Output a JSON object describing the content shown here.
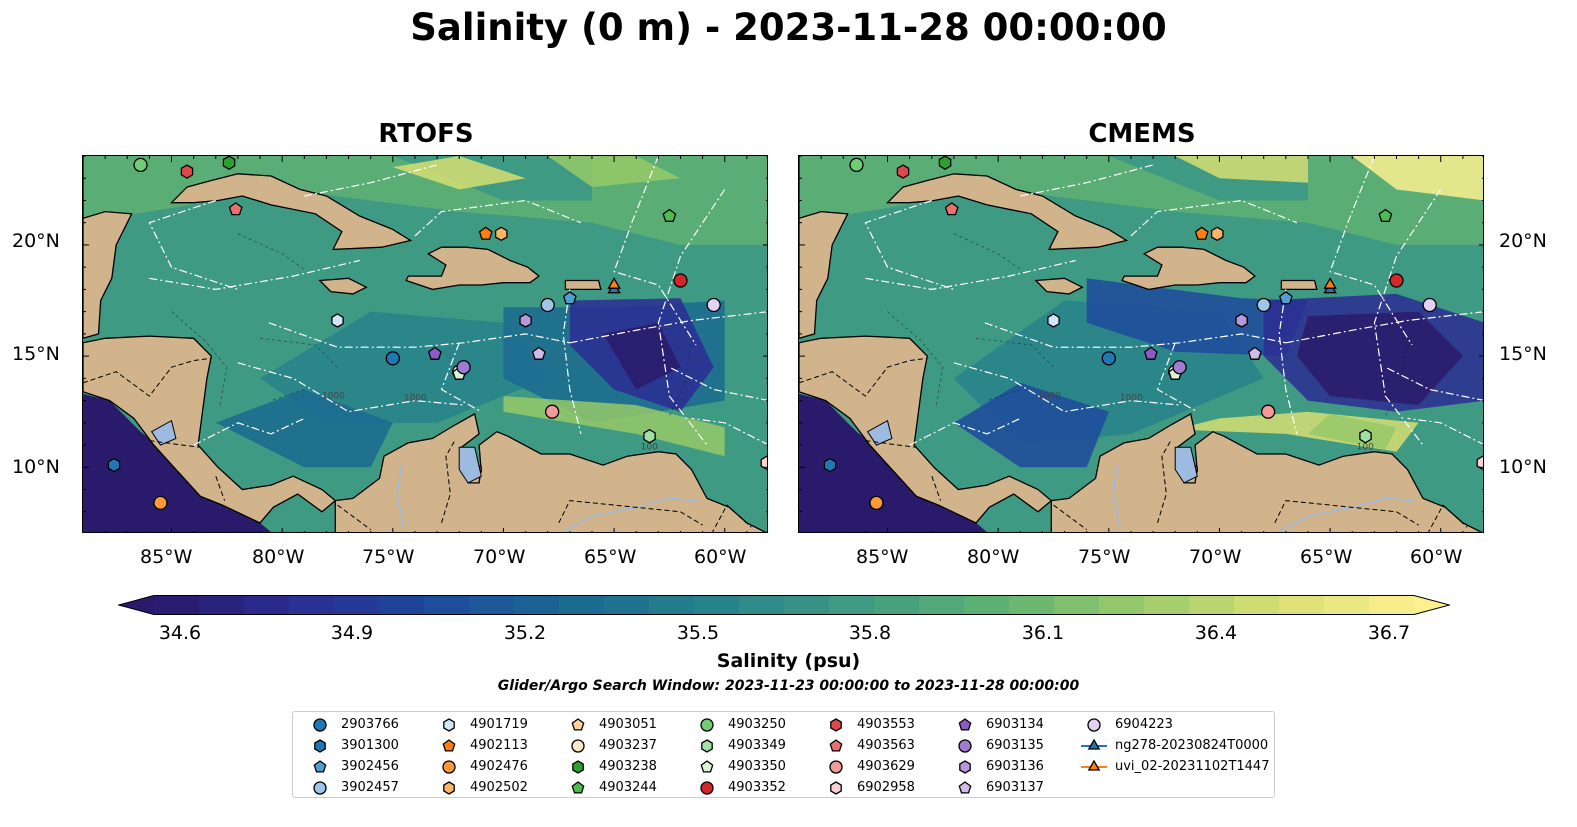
{
  "title": "Salinity (0 m) - 2023-11-28 00:00:00",
  "panels": [
    {
      "title": "RTOFS",
      "model": "rtofs"
    },
    {
      "title": "CMEMS",
      "model": "cmems"
    }
  ],
  "lon_ticks": [
    "85°W",
    "80°W",
    "75°W",
    "70°W",
    "65°W",
    "60°W"
  ],
  "lat_ticks": [
    "20°N",
    "15°N",
    "10°N"
  ],
  "map_extent": {
    "lon_min": -89.0,
    "lon_max": -58.0,
    "lat_min": 7.0,
    "lat_max": 24.0
  },
  "contour_labels": [
    "1000",
    "100"
  ],
  "colorbar": {
    "label": "Salinity (psu)",
    "min": 34.6,
    "max": 36.7,
    "step": 0.075,
    "ticks": [
      "34.6",
      "34.9",
      "35.2",
      "35.5",
      "35.8",
      "36.1",
      "36.4",
      "36.7"
    ],
    "extend": "both",
    "colormap": [
      "#2a1a6b",
      "#2b2d93",
      "#1d4a9c",
      "#1b6a91",
      "#28828c",
      "#3e9a82",
      "#5fb173",
      "#97c96a",
      "#d6df73",
      "#fdf08f"
    ]
  },
  "colors": {
    "land": "#d2b48c",
    "lakes": "#9dbbe0",
    "coast": "#000000",
    "eez": "#ffffff"
  },
  "search_window": "Glider/Argo Search Window: 2023-11-23 00:00:00 to 2023-11-28 00:00:00",
  "legend": [
    {
      "label": "2903766",
      "marker": "circle",
      "color": "#1f77b4"
    },
    {
      "label": "3901300",
      "marker": "hexagon",
      "color": "#1f77b4"
    },
    {
      "label": "3902456",
      "marker": "pentagon",
      "color": "#4f9fd2"
    },
    {
      "label": "3902457",
      "marker": "circle",
      "color": "#9ec6e8"
    },
    {
      "label": "4901719",
      "marker": "hexagon",
      "color": "#cfe6f7"
    },
    {
      "label": "4902113",
      "marker": "pentagon",
      "color": "#ff7f0e"
    },
    {
      "label": "4902476",
      "marker": "circle",
      "color": "#ff9933"
    },
    {
      "label": "4902502",
      "marker": "hexagon",
      "color": "#ffb366"
    },
    {
      "label": "4903051",
      "marker": "pentagon",
      "color": "#ffd29e"
    },
    {
      "label": "4903237",
      "marker": "circle",
      "color": "#ffe7cc"
    },
    {
      "label": "4903238",
      "marker": "hexagon",
      "color": "#2ca02c"
    },
    {
      "label": "4903244",
      "marker": "pentagon",
      "color": "#4dbd4d"
    },
    {
      "label": "4903250",
      "marker": "circle",
      "color": "#72cc72"
    },
    {
      "label": "4903349",
      "marker": "hexagon",
      "color": "#a3e0a3"
    },
    {
      "label": "4903350",
      "marker": "pentagon",
      "color": "#d9f5d9"
    },
    {
      "label": "4903352",
      "marker": "circle",
      "color": "#d62728"
    },
    {
      "label": "4903553",
      "marker": "hexagon",
      "color": "#e0474a"
    },
    {
      "label": "4903563",
      "marker": "pentagon",
      "color": "#ea7070"
    },
    {
      "label": "4903629",
      "marker": "circle",
      "color": "#f09a9a"
    },
    {
      "label": "6902958",
      "marker": "hexagon",
      "color": "#fbd0d0"
    },
    {
      "label": "6903134",
      "marker": "pentagon",
      "color": "#8a5bc4"
    },
    {
      "label": "6903135",
      "marker": "circle",
      "color": "#a07bd0"
    },
    {
      "label": "6903136",
      "marker": "hexagon",
      "color": "#b798dc"
    },
    {
      "label": "6903137",
      "marker": "pentagon",
      "color": "#d0bbe9"
    },
    {
      "label": "6904223",
      "marker": "circle",
      "color": "#e4d2f5"
    },
    {
      "label": "ng278-20230824T0000",
      "marker": "triangle",
      "color": "#1f77b4"
    },
    {
      "label": "uvi_02-20231102T1447",
      "marker": "triangle",
      "color": "#ff7f0e"
    }
  ],
  "platforms": [
    {
      "id": "2903766",
      "lon": -75.0,
      "lat": 14.9
    },
    {
      "id": "3901300",
      "lon": -87.6,
      "lat": 10.1
    },
    {
      "id": "3902456",
      "lon": -67.0,
      "lat": 17.6
    },
    {
      "id": "3902457",
      "lon": -68.0,
      "lat": 17.3
    },
    {
      "id": "4901719",
      "lon": -77.5,
      "lat": 16.6
    },
    {
      "id": "4902113",
      "lon": -70.8,
      "lat": 20.5
    },
    {
      "id": "4902476",
      "lon": -85.5,
      "lat": 8.4
    },
    {
      "id": "4902502",
      "lon": -70.1,
      "lat": 20.5
    },
    {
      "id": "4903051",
      "lon": -72.0,
      "lat": 14.2
    },
    {
      "id": "4903237",
      "lon": -72.0,
      "lat": 14.3
    },
    {
      "id": "4903238",
      "lon": -82.4,
      "lat": 23.7
    },
    {
      "id": "4903244",
      "lon": -62.5,
      "lat": 21.3
    },
    {
      "id": "4903250",
      "lon": -86.4,
      "lat": 23.6
    },
    {
      "id": "4903349",
      "lon": -63.4,
      "lat": 11.4
    },
    {
      "id": "4903350",
      "lon": -72.0,
      "lat": 14.2
    },
    {
      "id": "4903352",
      "lon": -62.0,
      "lat": 18.4
    },
    {
      "id": "4903553",
      "lon": -84.3,
      "lat": 23.3
    },
    {
      "id": "4903563",
      "lon": -82.1,
      "lat": 21.6
    },
    {
      "id": "4903629",
      "lon": -67.8,
      "lat": 12.5
    },
    {
      "id": "6902958",
      "lon": -58.1,
      "lat": 10.2
    },
    {
      "id": "6903134",
      "lon": -73.1,
      "lat": 15.1
    },
    {
      "id": "6903135",
      "lon": -71.8,
      "lat": 14.5
    },
    {
      "id": "6903136",
      "lon": -69.0,
      "lat": 16.6
    },
    {
      "id": "6903137",
      "lon": -68.4,
      "lat": 15.1
    },
    {
      "id": "6904223",
      "lon": -60.5,
      "lat": 17.3
    },
    {
      "id": "ng278-20230824T0000",
      "lon": -65.0,
      "lat": 18.0
    },
    {
      "id": "uvi_02-20231102T1447",
      "lon": -65.0,
      "lat": 18.2
    }
  ]
}
